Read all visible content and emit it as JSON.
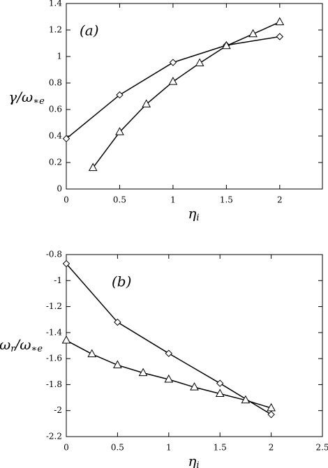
{
  "chart_data": [
    {
      "type": "line",
      "annotation": "(a)",
      "xlabel": "η",
      "xlabel_sub": "i",
      "ylabel": "γ/ω",
      "ylabel_sub": "∗e",
      "xlim": [
        0,
        2.4
      ],
      "xticks": [
        0,
        0.5,
        1,
        1.5,
        2
      ],
      "ylim": [
        0,
        1.4
      ],
      "yticks": [
        0,
        0.2,
        0.4,
        0.6,
        0.8,
        1,
        1.2,
        1.4
      ],
      "series": [
        {
          "marker": "diamond",
          "color": "#000000",
          "x": [
            0,
            0.5,
            1,
            1.5,
            2
          ],
          "values": [
            0.38,
            0.71,
            0.955,
            1.085,
            1.15
          ]
        },
        {
          "marker": "triangle",
          "color": "#000000",
          "x": [
            0.25,
            0.5,
            0.75,
            1,
            1.25,
            1.5,
            1.75,
            2
          ],
          "values": [
            0.16,
            0.43,
            0.64,
            0.81,
            0.95,
            1.08,
            1.17,
            1.26
          ]
        }
      ]
    },
    {
      "type": "line",
      "annotation": "(b)",
      "xlabel": "η",
      "xlabel_sub": "i",
      "ylabel": "ω",
      "ylabel_mid": "r",
      "ylabel_rest": "/ω",
      "ylabel_sub": "∗e",
      "xlim": [
        0,
        2.5
      ],
      "xticks": [
        0,
        0.5,
        1,
        1.5,
        2,
        2.5
      ],
      "ylim": [
        -2.2,
        -0.8
      ],
      "yticks": [
        -2.2,
        -2,
        -1.8,
        -1.6,
        -1.4,
        -1.2,
        -1,
        -0.8
      ],
      "series": [
        {
          "marker": "diamond",
          "color": "#000000",
          "x": [
            0,
            0.5,
            1,
            1.5,
            2
          ],
          "values": [
            -0.87,
            -1.32,
            -1.56,
            -1.79,
            -2.03
          ]
        },
        {
          "marker": "triangle",
          "color": "#000000",
          "x": [
            0,
            0.25,
            0.5,
            0.75,
            1,
            1.25,
            1.5,
            1.75,
            2
          ],
          "values": [
            -1.46,
            -1.565,
            -1.65,
            -1.71,
            -1.76,
            -1.82,
            -1.87,
            -1.92,
            -1.98
          ]
        }
      ]
    }
  ]
}
